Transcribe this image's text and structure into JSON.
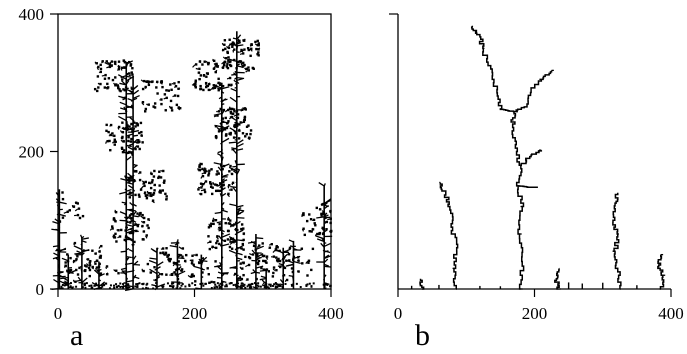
{
  "figure": {
    "panels": [
      {
        "id": "a",
        "label": "a"
      },
      {
        "id": "b",
        "label": "b"
      }
    ]
  },
  "chart_data": [
    {
      "type": "scatter",
      "panel": "a",
      "description_label": "a",
      "xlim": [
        0,
        400
      ],
      "ylim": [
        0,
        400
      ],
      "x_ticks": [
        0,
        200,
        400
      ],
      "y_ticks": [
        0,
        200,
        400
      ],
      "x_tick_labels": [
        "0",
        "200",
        "400"
      ],
      "y_tick_labels": [
        "0",
        "200",
        "400"
      ],
      "grid": false,
      "series": [
        {
          "trunks": [
            {
              "x": 100,
              "y0": 0,
              "y1": 330
            },
            {
              "x": 110,
              "y0": 0,
              "y1": 310
            },
            {
              "x": 240,
              "y0": 0,
              "y1": 300
            },
            {
              "x": 262,
              "y0": 0,
              "y1": 375
            },
            {
              "x": 390,
              "y0": 0,
              "y1": 150
            },
            {
              "x": 2,
              "y0": 0,
              "y1": 145
            },
            {
              "x": 35,
              "y0": 0,
              "y1": 75
            },
            {
              "x": 15,
              "y0": 0,
              "y1": 50
            },
            {
              "x": 175,
              "y0": 0,
              "y1": 70
            },
            {
              "x": 145,
              "y0": 0,
              "y1": 60
            },
            {
              "x": 290,
              "y0": 0,
              "y1": 80
            },
            {
              "x": 330,
              "y0": 0,
              "y1": 60
            },
            {
              "x": 345,
              "y0": 0,
              "y1": 70
            },
            {
              "x": 60,
              "y0": 0,
              "y1": 40
            },
            {
              "x": 210,
              "y0": 0,
              "y1": 50
            },
            {
              "x": 305,
              "y0": 0,
              "y1": 30
            }
          ],
          "clusters": [
            {
              "x": 80,
              "y": 310,
              "n": 60
            },
            {
              "x": 150,
              "y": 280,
              "n": 45
            },
            {
              "x": 95,
              "y": 220,
              "n": 55
            },
            {
              "x": 130,
              "y": 150,
              "n": 55
            },
            {
              "x": 105,
              "y": 90,
              "n": 45
            },
            {
              "x": 225,
              "y": 310,
              "n": 55
            },
            {
              "x": 265,
              "y": 340,
              "n": 60
            },
            {
              "x": 255,
              "y": 240,
              "n": 60
            },
            {
              "x": 230,
              "y": 160,
              "n": 50
            },
            {
              "x": 245,
              "y": 80,
              "n": 45
            },
            {
              "x": 385,
              "y": 100,
              "n": 45
            },
            {
              "x": 10,
              "y": 120,
              "n": 20
            },
            {
              "x": 35,
              "y": 45,
              "n": 25
            },
            {
              "x": 20,
              "y": 30,
              "n": 15
            },
            {
              "x": 60,
              "y": 25,
              "n": 15
            },
            {
              "x": 175,
              "y": 40,
              "n": 20
            },
            {
              "x": 205,
              "y": 30,
              "n": 18
            },
            {
              "x": 150,
              "y": 30,
              "n": 18
            },
            {
              "x": 295,
              "y": 45,
              "n": 25
            },
            {
              "x": 325,
              "y": 35,
              "n": 18
            },
            {
              "x": 345,
              "y": 40,
              "n": 20
            },
            {
              "x": 280,
              "y": 25,
              "n": 14
            }
          ]
        }
      ]
    },
    {
      "type": "line",
      "panel": "b",
      "description_label": "b",
      "xlim": [
        0,
        400
      ],
      "ylim": [
        0,
        400
      ],
      "x_ticks": [
        0,
        200,
        400
      ],
      "x_tick_labels": [
        "0",
        "200",
        "400"
      ],
      "grid": false,
      "series": [
        {
          "path": [
            [
              180,
              0
            ],
            [
              182,
              40
            ],
            [
              178,
              80
            ],
            [
              182,
              120
            ],
            [
              176,
              150
            ],
            [
              180,
              180
            ],
            [
              172,
              210
            ],
            [
              168,
              240
            ],
            [
              170,
              258
            ],
            [
              150,
              262
            ],
            [
              145,
              290
            ],
            [
              138,
              320
            ],
            [
              125,
              350
            ],
            [
              120,
              370
            ],
            [
              108,
              382
            ]
          ]
        },
        {
          "path": [
            [
              170,
              258
            ],
            [
              185,
              265
            ],
            [
              195,
              290
            ],
            [
              210,
              305
            ],
            [
              225,
              318
            ]
          ]
        },
        {
          "path": [
            [
              180,
              180
            ],
            [
              195,
              195
            ],
            [
              210,
              202
            ]
          ]
        },
        {
          "path": [
            [
              176,
              150
            ],
            [
              190,
              148
            ],
            [
              205,
              148
            ]
          ]
        },
        {
          "path": [
            [
              85,
              0
            ],
            [
              82,
              30
            ],
            [
              86,
              60
            ],
            [
              80,
              90
            ],
            [
              76,
              120
            ],
            [
              70,
              140
            ],
            [
              62,
              155
            ]
          ]
        },
        {
          "path": [
            [
              325,
              0
            ],
            [
              322,
              30
            ],
            [
              318,
              55
            ],
            [
              322,
              80
            ],
            [
              315,
              100
            ],
            [
              318,
              125
            ],
            [
              322,
              140
            ]
          ]
        },
        {
          "path": [
            [
              385,
              0
            ],
            [
              388,
              20
            ],
            [
              382,
              35
            ],
            [
              385,
              50
            ]
          ]
        },
        {
          "path": [
            [
              235,
              0
            ],
            [
              232,
              15
            ],
            [
              236,
              30
            ]
          ]
        },
        {
          "path": [
            [
              35,
              0
            ],
            [
              33,
              15
            ]
          ]
        }
      ]
    }
  ]
}
